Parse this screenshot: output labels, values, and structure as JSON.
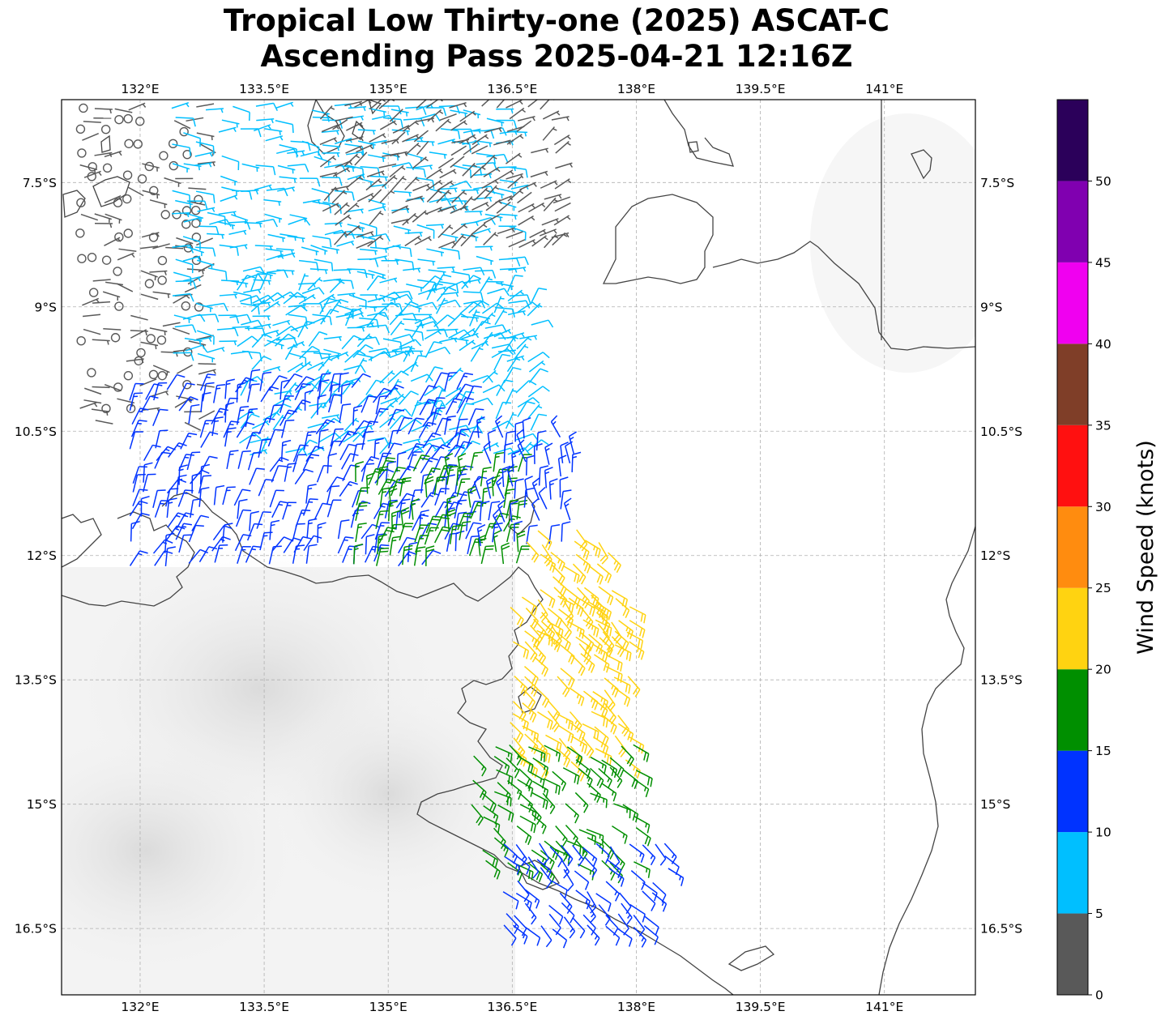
{
  "title": {
    "line1": "Tropical Low Thirty-one (2025) ASCAT-C",
    "line2": "Ascending Pass 2025-04-21 12:16Z"
  },
  "map": {
    "lon_range": [
      131.05,
      142.1
    ],
    "lat_range": [
      -17.3,
      -6.5
    ],
    "lon_ticks": [
      {
        "value": 132.0,
        "label": "132°E"
      },
      {
        "value": 133.5,
        "label": "133.5°E"
      },
      {
        "value": 135.0,
        "label": "135°E"
      },
      {
        "value": 136.5,
        "label": "136.5°E"
      },
      {
        "value": 138.0,
        "label": "138°E"
      },
      {
        "value": 139.5,
        "label": "139.5°E"
      },
      {
        "value": 141.0,
        "label": "141°E"
      }
    ],
    "lat_ticks": [
      {
        "value": -7.5,
        "label": "7.5°S"
      },
      {
        "value": -9.0,
        "label": "9°S"
      },
      {
        "value": -10.5,
        "label": "10.5°S"
      },
      {
        "value": -12.0,
        "label": "12°S"
      },
      {
        "value": -13.5,
        "label": "13.5°S"
      },
      {
        "value": -15.0,
        "label": "15°S"
      },
      {
        "value": -16.5,
        "label": "16.5°S"
      }
    ],
    "gridlines": true,
    "calm_markers_below_knots": 1
  },
  "colorbar": {
    "label": "Wind Speed (knots)",
    "ticks": [
      {
        "value": 0,
        "label": "0"
      },
      {
        "value": 5,
        "label": "5"
      },
      {
        "value": 10,
        "label": "10"
      },
      {
        "value": 15,
        "label": "15"
      },
      {
        "value": 20,
        "label": "20"
      },
      {
        "value": 25,
        "label": "25"
      },
      {
        "value": 30,
        "label": "30"
      },
      {
        "value": 35,
        "label": "35"
      },
      {
        "value": 40,
        "label": "40"
      },
      {
        "value": 45,
        "label": "45"
      },
      {
        "value": 50,
        "label": "50"
      }
    ],
    "bins": [
      {
        "min": 0,
        "max": 5,
        "color": "#595959"
      },
      {
        "min": 5,
        "max": 10,
        "color": "#00bfff"
      },
      {
        "min": 10,
        "max": 15,
        "color": "#0033ff"
      },
      {
        "min": 15,
        "max": 20,
        "color": "#008f00"
      },
      {
        "min": 20,
        "max": 25,
        "color": "#ffd311"
      },
      {
        "min": 25,
        "max": 30,
        "color": "#ff8c0f"
      },
      {
        "min": 30,
        "max": 35,
        "color": "#ff1010"
      },
      {
        "min": 35,
        "max": 40,
        "color": "#7f3e28"
      },
      {
        "min": 40,
        "max": 45,
        "color": "#f000f0"
      },
      {
        "min": 45,
        "max": 50,
        "color": "#8000b0"
      },
      {
        "min": 50,
        "max": 55,
        "color": "#2b005a"
      }
    ]
  },
  "wind_regions": [
    {
      "name": "north-gulf-calm",
      "lon": [
        131.3,
        132.8
      ],
      "lat": [
        -10.5,
        -6.6
      ],
      "speed": [
        0,
        4
      ],
      "dir": [
        60,
        120
      ],
      "calm_ratio": 0.35
    },
    {
      "name": "north-light-east",
      "lon": [
        132.4,
        136.5
      ],
      "lat": [
        -9.6,
        -6.6
      ],
      "speed": [
        5,
        9
      ],
      "dir": [
        70,
        110
      ],
      "calm_ratio": 0
    },
    {
      "name": "north-light-calm-band",
      "lon": [
        134.2,
        137.0
      ],
      "lat": [
        -8.4,
        -6.6
      ],
      "speed": [
        2,
        5
      ],
      "dir": [
        40,
        80
      ],
      "calm_ratio": 0
    },
    {
      "name": "central-light",
      "lon": [
        133.2,
        136.7
      ],
      "lat": [
        -10.8,
        -8.8
      ],
      "speed": [
        6,
        9
      ],
      "dir": [
        20,
        80
      ],
      "calm_ratio": 0
    },
    {
      "name": "central-moderate",
      "lon": [
        131.9,
        136.0
      ],
      "lat": [
        -12.2,
        -10.0
      ],
      "speed": [
        10,
        14
      ],
      "dir": [
        0,
        40
      ],
      "calm_ratio": 0
    },
    {
      "name": "central-strong",
      "lon": [
        134.6,
        136.6
      ],
      "lat": [
        -12.2,
        -11.0
      ],
      "speed": [
        15,
        19
      ],
      "dir": [
        350,
        30
      ],
      "calm_ratio": 0
    },
    {
      "name": "east-edge-moderate",
      "lon": [
        136.1,
        137.3
      ],
      "lat": [
        -12.0,
        -10.6
      ],
      "speed": [
        10,
        14
      ],
      "dir": [
        330,
        10
      ],
      "calm_ratio": 0
    },
    {
      "name": "south-gulf-strong",
      "lon": [
        136.7,
        137.8
      ],
      "lat": [
        -13.0,
        -11.7
      ],
      "speed": [
        20,
        24
      ],
      "dir": [
        120,
        150
      ],
      "calm_ratio": 0
    },
    {
      "name": "south-gulf-very-strong",
      "lon": [
        136.5,
        137.9
      ],
      "lat": [
        -14.6,
        -12.5
      ],
      "speed": [
        20,
        24
      ],
      "dir": [
        115,
        145
      ],
      "calm_ratio": 0
    },
    {
      "name": "south-gulf-green",
      "lon": [
        135.6,
        138.0
      ],
      "lat": [
        -15.8,
        -14.3
      ],
      "speed": [
        15,
        19
      ],
      "dir": [
        110,
        140
      ],
      "calm_ratio": 0
    },
    {
      "name": "south-gulf-blue",
      "lon": [
        136.4,
        138.4
      ],
      "lat": [
        -16.5,
        -15.5
      ],
      "speed": [
        10,
        14
      ],
      "dir": [
        120,
        150
      ],
      "calm_ratio": 0
    }
  ]
}
